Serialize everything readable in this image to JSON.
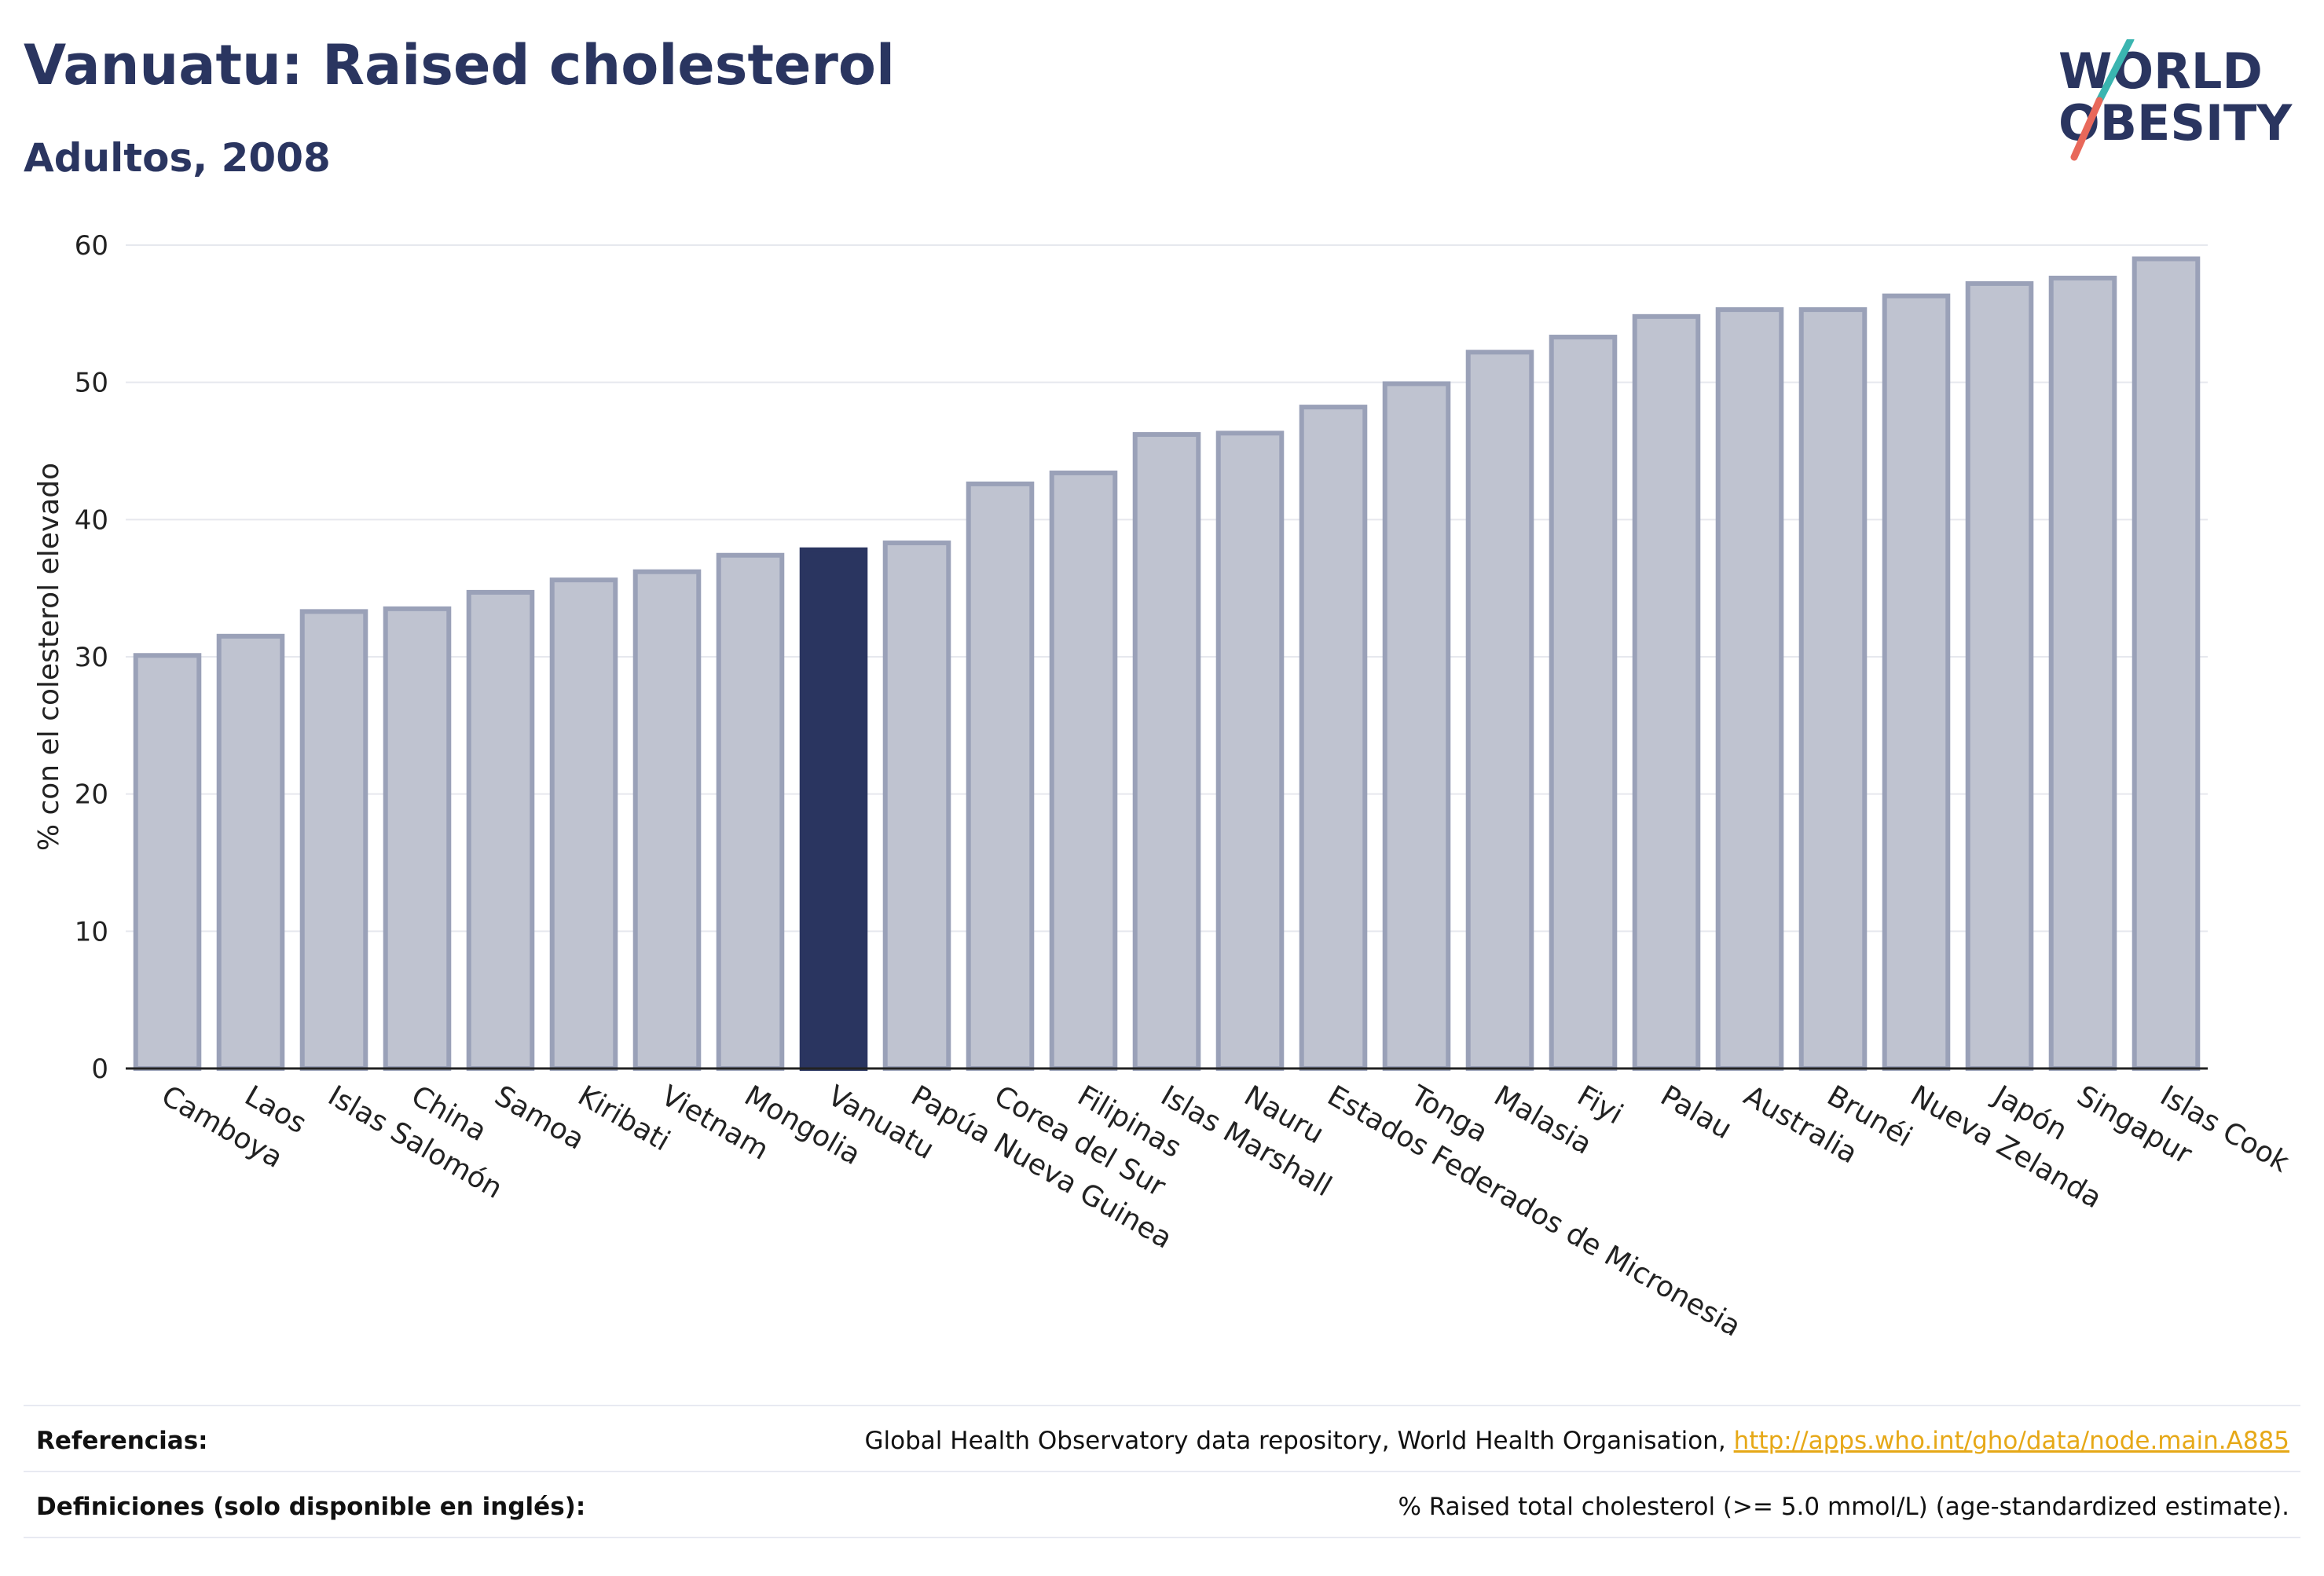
{
  "header": {
    "title": "Vanuatu: Raised cholesterol",
    "subtitle": "Adultos, 2008"
  },
  "logo": {
    "line1": "WORLD",
    "line2": "OBESITY"
  },
  "colors": {
    "accent": "#2a3560",
    "bar_fill": "#bfc3d0",
    "bar_stroke": "#9aa1b8",
    "highlight": "#2a3560",
    "logo_teal": "#3ab5b0",
    "logo_coral": "#e8685a",
    "link": "#e6a817"
  },
  "chart_data": {
    "type": "bar",
    "title": "Vanuatu: Raised cholesterol",
    "subtitle": "Adultos, 2008",
    "xlabel": "",
    "ylabel": "% con el colesterol elevado",
    "ylim": [
      0,
      60
    ],
    "yticks": [
      0,
      10,
      20,
      30,
      40,
      50,
      60
    ],
    "grid": true,
    "highlight": "Vanuatu",
    "categories": [
      "Camboya",
      "Laos",
      "Islas Salomón",
      "China",
      "Samoa",
      "Kiribati",
      "Vietnam",
      "Mongolia",
      "Vanuatu",
      "Papúa Nueva Guinea",
      "Corea del Sur",
      "Filipinas",
      "Islas Marshall",
      "Nauru",
      "Estados Federados de Micronesia",
      "Tonga",
      "Malasia",
      "Fiyi",
      "Palau",
      "Australia",
      "Brunéi",
      "Nueva Zelanda",
      "Japón",
      "Singapur",
      "Islas Cook"
    ],
    "values": [
      30.1,
      31.5,
      33.3,
      33.5,
      34.7,
      35.6,
      36.2,
      37.4,
      37.8,
      38.3,
      42.6,
      43.4,
      46.2,
      46.3,
      48.2,
      49.9,
      52.2,
      53.3,
      54.8,
      55.3,
      55.3,
      56.3,
      57.2,
      57.6,
      59.0
    ]
  },
  "footer": {
    "references_label": "Referencias:",
    "references_text": "Global Health Observatory data repository, World Health Organisation, ",
    "references_link": "http://apps.who.int/gho/data/node.main.A885",
    "definitions_label": "Definiciones (solo disponible en inglés):",
    "definitions_text": "% Raised total cholesterol (>= 5.0 mmol/L) (age-standardized estimate)."
  }
}
